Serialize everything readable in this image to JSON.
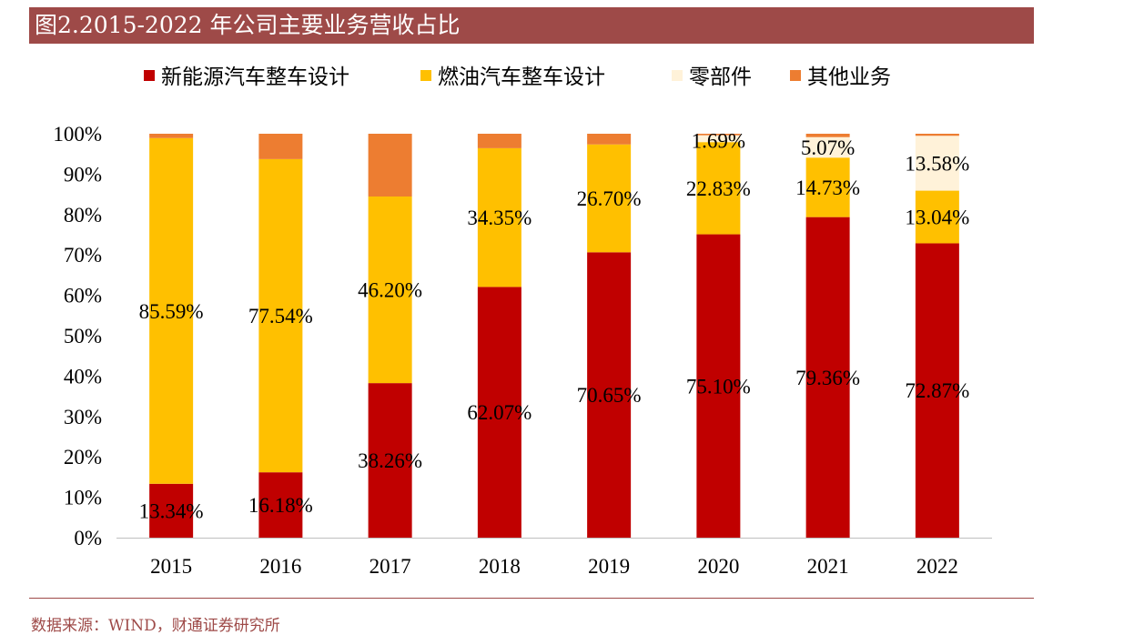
{
  "header": {
    "title": "图2.2015-2022 年公司主要业务营收占比"
  },
  "footer": {
    "source": "数据来源：WIND，财通证券研究所"
  },
  "colors": {
    "brand": "#9e4a48"
  },
  "chart_data": {
    "type": "bar",
    "stacked": true,
    "categories": [
      "2015",
      "2016",
      "2017",
      "2018",
      "2019",
      "2020",
      "2021",
      "2022"
    ],
    "series": [
      {
        "name": "新能源汽车整车设计",
        "color": "#c00000",
        "values": [
          13.34,
          16.18,
          38.26,
          62.07,
          70.65,
          75.1,
          79.36,
          72.87
        ],
        "labels": [
          "13.34%",
          "16.18%",
          "38.26%",
          "62.07%",
          "70.65%",
          "75.10%",
          "79.36%",
          "72.87%"
        ]
      },
      {
        "name": "燃油汽车整车设计",
        "color": "#ffc000",
        "values": [
          85.59,
          77.54,
          46.2,
          34.35,
          26.7,
          22.83,
          14.73,
          13.04
        ],
        "labels": [
          "85.59%",
          "77.54%",
          "46.20%",
          "34.35%",
          "26.70%",
          "22.83%",
          "14.73%",
          "13.04%"
        ]
      },
      {
        "name": "零部件",
        "color": "#fff2d9",
        "values": [
          0,
          0,
          0,
          0,
          0,
          1.69,
          5.07,
          13.58
        ],
        "labels": [
          "",
          "",
          "",
          "",
          "",
          "1.69%",
          "5.07%",
          "13.58%"
        ]
      },
      {
        "name": "其他业务",
        "color": "#ed7d31",
        "values": [
          1.07,
          6.28,
          15.54,
          3.58,
          2.65,
          0.38,
          0.84,
          0.51
        ],
        "labels": [
          "",
          "",
          "",
          "",
          "",
          "",
          "",
          ""
        ]
      }
    ],
    "yticks": [
      "0%",
      "10%",
      "20%",
      "30%",
      "40%",
      "50%",
      "60%",
      "70%",
      "80%",
      "90%",
      "100%"
    ],
    "ylim": [
      0,
      100
    ],
    "legend_position": "top",
    "grid": false
  }
}
